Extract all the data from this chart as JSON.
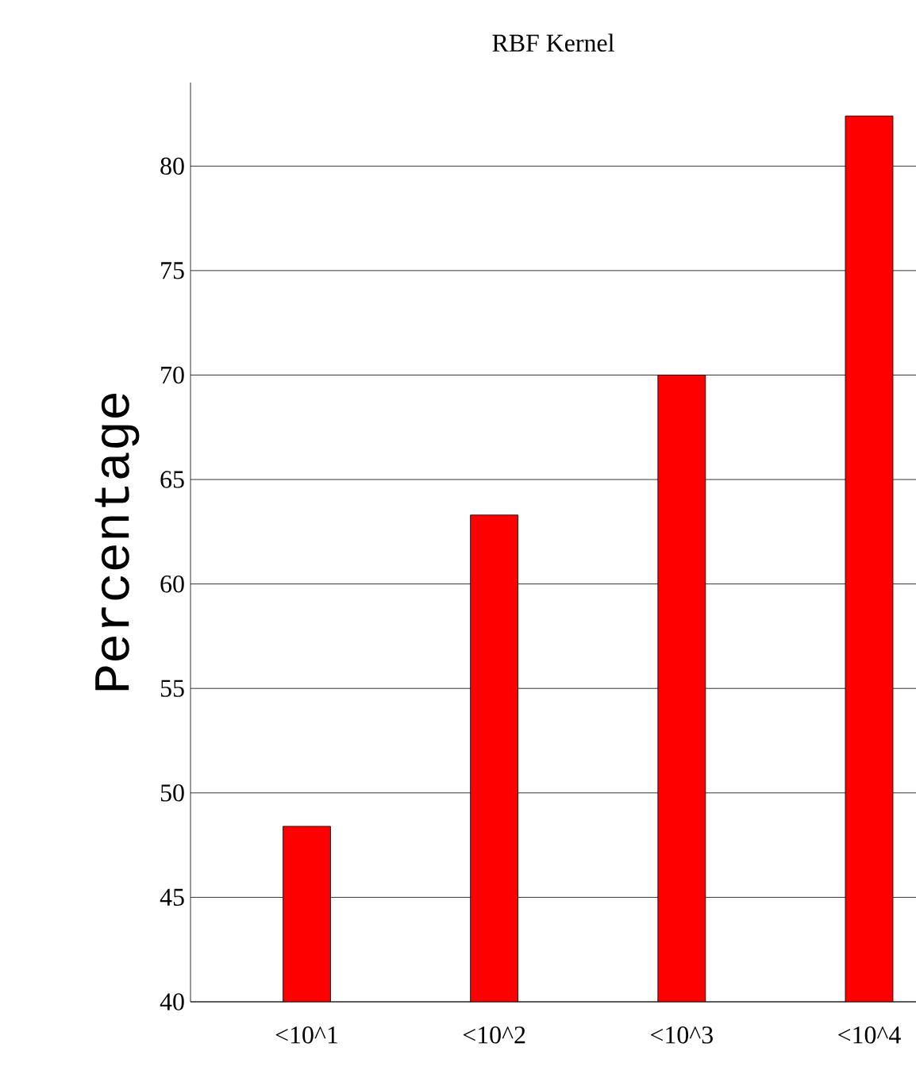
{
  "chart_data": {
    "type": "bar",
    "title": "RBF Kernel",
    "ylabel": "Percentage",
    "categories": [
      "<10^1",
      "<10^2",
      "<10^3",
      "<10^4"
    ],
    "values": [
      48.4,
      63.3,
      70.0,
      82.4
    ],
    "color": "#ff0000",
    "ylim": [
      40,
      84
    ],
    "yticks": [
      40,
      45,
      50,
      55,
      60,
      65,
      70,
      75,
      80
    ],
    "grid": "y"
  }
}
